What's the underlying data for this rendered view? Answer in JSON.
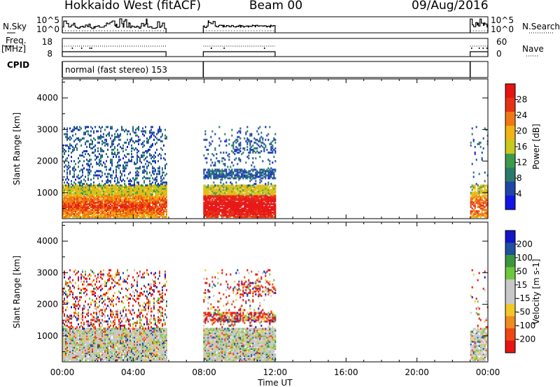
{
  "header": {
    "title": "Hokkaido West (fitACF)",
    "beam": "Beam 00",
    "date": "09/Aug/2016"
  },
  "status_panels": {
    "nsky_label": "N.Sky",
    "nsky_ticks": [
      "10^5",
      "10^0"
    ],
    "nsearch_label": "N.Search",
    "nsearch_ticks": [
      "10^5",
      "10^0"
    ],
    "freq_label_1": "Freq.",
    "freq_label_2": "[MHz]",
    "freq_ticks": [
      "18",
      "8"
    ],
    "nave_label": "Nave",
    "nave_ticks": [
      "60",
      "0"
    ],
    "cpid_label": "CPID",
    "cpid_text": "normal (fast stereo) 153"
  },
  "colors": {
    "power_scale": [
      "#1414e6",
      "#2046a8",
      "#2a7a6a",
      "#3c9a4a",
      "#c8c81e",
      "#f0b414",
      "#f07814",
      "#e63214",
      "#e61414"
    ],
    "velocity_scale": [
      "#e61414",
      "#f04614",
      "#f08c1e",
      "#f0c828",
      "#c8c8c8",
      "#c8c8c8",
      "#6ec83c",
      "#3c963c",
      "#2050a0",
      "#1414c8"
    ]
  },
  "chart_data": [
    {
      "type": "heatmap",
      "name": "power",
      "x": [
        "00:00",
        "04:00",
        "08:00",
        "12:00",
        "16:00",
        "20:00",
        "00:00"
      ],
      "xlim_hours": [
        0,
        24
      ],
      "ylabel": "Slant Range [km]",
      "yticks": [
        1000,
        2000,
        3000,
        4000
      ],
      "ylim": [
        180,
        4600
      ],
      "colorbar_label": "Power [dB]",
      "colorbar_ticks": [
        "28",
        "24",
        "20",
        "16",
        "12",
        "8",
        "4"
      ],
      "clim": [
        0,
        30
      ],
      "data_intervals_hours": [
        [
          0.0,
          5.85
        ],
        [
          7.95,
          12.0
        ],
        [
          23.0,
          24.0
        ]
      ],
      "dense_range_km": [
        180,
        1200
      ],
      "sparse_range_km": [
        1200,
        3050
      ]
    },
    {
      "type": "heatmap",
      "name": "velocity",
      "x": [
        "00:00",
        "04:00",
        "08:00",
        "12:00",
        "16:00",
        "20:00",
        "00:00"
      ],
      "xlim_hours": [
        0,
        24
      ],
      "xlabel": "Time UT",
      "ylabel": "Slant Range [km]",
      "yticks": [
        1000,
        2000,
        3000,
        4000
      ],
      "ylim": [
        180,
        4600
      ],
      "colorbar_label": "Velocity [m s-1]",
      "colorbar_ticks": [
        "200",
        "100",
        "50",
        "15",
        "-15",
        "-50",
        "-100",
        "-200"
      ],
      "clim": [
        -250,
        250
      ],
      "data_intervals_hours": [
        [
          0.0,
          5.85
        ],
        [
          7.95,
          12.0
        ],
        [
          23.0,
          24.0
        ]
      ]
    }
  ]
}
